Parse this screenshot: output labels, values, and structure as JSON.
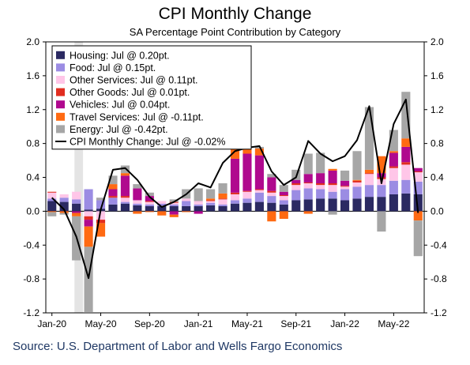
{
  "chart_data": {
    "type": "bar",
    "title": "CPI Monthly Change",
    "subtitle": "SA Percentage Point Contribution by Category",
    "source": "Source: U.S. Department of Labor and Wells Fargo Economics",
    "x": [
      "Jan-20",
      "Feb-20",
      "Mar-20",
      "Apr-20",
      "May-20",
      "Jun-20",
      "Jul-20",
      "Aug-20",
      "Sep-20",
      "Oct-20",
      "Nov-20",
      "Dec-20",
      "Jan-21",
      "Feb-21",
      "Mar-21",
      "Apr-21",
      "May-21",
      "Jun-21",
      "Jul-21",
      "Aug-21",
      "Sep-21",
      "Oct-21",
      "Nov-21",
      "Dec-21",
      "Jan-22",
      "Feb-22",
      "Mar-22",
      "Apr-22",
      "May-22",
      "Jun-22",
      "Jul-22"
    ],
    "x_tick_labels": [
      "Jan-20",
      "May-20",
      "Sep-20",
      "Jan-21",
      "May-21",
      "Sep-21",
      "Jan-22",
      "May-22"
    ],
    "ylim": [
      -1.2,
      2.0
    ],
    "y_ticks": [
      "2.0",
      "1.6",
      "1.2",
      "0.8",
      "0.4",
      "0.0",
      "-0.4",
      "-0.8",
      "-1.2"
    ],
    "y_tick_values": [
      2.0,
      1.6,
      1.2,
      0.8,
      0.4,
      0.0,
      -0.4,
      -0.8,
      -1.2
    ],
    "recession": [
      "Mar-20",
      "Apr-20"
    ],
    "legend_placement": "top-left",
    "series": [
      {
        "name": "Housing: Jul @ 0.20pt.",
        "color": "#2b2a62",
        "values": [
          0.12,
          0.11,
          0.09,
          0.02,
          0.03,
          0.08,
          0.09,
          0.07,
          0.06,
          0.06,
          0.06,
          0.06,
          0.06,
          0.07,
          0.06,
          0.09,
          0.1,
          0.11,
          0.1,
          0.08,
          0.13,
          0.14,
          0.15,
          0.15,
          0.13,
          0.15,
          0.17,
          0.17,
          0.2,
          0.21,
          0.2
        ]
      },
      {
        "name": "Food: Jul @ 0.15pt.",
        "color": "#9b8ce3",
        "values": [
          0.03,
          0.05,
          0.05,
          0.24,
          0.1,
          0.08,
          0.02,
          0.02,
          0.02,
          0.03,
          0.02,
          0.06,
          0.02,
          0.03,
          0.02,
          0.04,
          0.05,
          0.11,
          0.08,
          0.05,
          0.12,
          0.13,
          0.11,
          0.08,
          0.13,
          0.14,
          0.14,
          0.14,
          0.16,
          0.16,
          0.15
        ]
      },
      {
        "name": "Other Services: Jul @ 0.11pt.",
        "color": "#ffc6e8",
        "values": [
          0.07,
          0.04,
          0.09,
          -0.06,
          -0.1,
          0.0,
          0.05,
          0.04,
          0.03,
          0.03,
          0.02,
          0.03,
          0.04,
          0.02,
          0.06,
          0.07,
          0.08,
          0.03,
          0.04,
          0.05,
          0.06,
          0.06,
          0.05,
          0.08,
          0.03,
          0.05,
          0.13,
          0.07,
          0.15,
          0.18,
          0.11
        ]
      },
      {
        "name": "Other Goods: Jul @ 0.01pt.",
        "color": "#e12d20",
        "values": [
          0.01,
          0.0,
          0.0,
          -0.04,
          -0.04,
          0.02,
          0.02,
          0.0,
          0.01,
          0.0,
          0.01,
          0.0,
          0.0,
          0.01,
          0.01,
          0.02,
          0.01,
          0.01,
          0.02,
          0.01,
          0.02,
          0.01,
          0.02,
          0.02,
          0.01,
          0.02,
          0.01,
          0.02,
          0.02,
          0.03,
          0.01
        ]
      },
      {
        "name": "Vehicles: Jul @ 0.04pt.",
        "color": "#b0098e",
        "values": [
          0.0,
          0.0,
          -0.02,
          -0.08,
          0.0,
          0.08,
          0.24,
          0.14,
          0.06,
          0.0,
          -0.04,
          0.0,
          -0.03,
          0.0,
          0.0,
          0.4,
          0.44,
          0.4,
          0.16,
          0.04,
          0.04,
          0.1,
          0.12,
          0.15,
          0.06,
          0.0,
          0.0,
          0.05,
          0.16,
          0.18,
          0.04
        ]
      },
      {
        "name": "Travel Services: Jul @ -0.11pt.",
        "color": "#ff6a12",
        "values": [
          -0.01,
          -0.02,
          -0.04,
          -0.24,
          -0.16,
          0.06,
          0.03,
          -0.03,
          -0.01,
          -0.05,
          -0.03,
          -0.01,
          0.0,
          0.02,
          0.06,
          0.14,
          0.12,
          0.08,
          -0.12,
          -0.09,
          0.0,
          -0.03,
          0.0,
          0.02,
          0.0,
          0.01,
          0.04,
          0.2,
          0.02,
          0.1,
          -0.11
        ]
      },
      {
        "name": "Energy: Jul @ -0.42pt.",
        "color": "#a6a6a6",
        "values": [
          -0.05,
          -0.02,
          -0.52,
          -0.77,
          0.03,
          0.1,
          0.09,
          0.05,
          0.04,
          0.0,
          0.03,
          0.11,
          0.15,
          0.11,
          0.12,
          0.02,
          0.04,
          0.02,
          0.04,
          0.08,
          0.12,
          0.24,
          0.24,
          -0.04,
          0.12,
          0.34,
          0.74,
          -0.24,
          0.25,
          0.55,
          -0.42
        ]
      }
    ],
    "line": {
      "name": "CPI Monthly Change: Jul @ -0.02%",
      "color": "#000000",
      "values": [
        0.16,
        0.02,
        -0.3,
        -0.79,
        0.02,
        0.49,
        0.51,
        0.37,
        0.17,
        0.05,
        0.11,
        0.2,
        0.33,
        0.28,
        0.57,
        0.71,
        0.75,
        0.77,
        0.47,
        0.31,
        0.4,
        0.83,
        0.68,
        0.59,
        0.65,
        0.84,
        1.24,
        0.33,
        1.03,
        1.32,
        -0.02
      ]
    }
  }
}
